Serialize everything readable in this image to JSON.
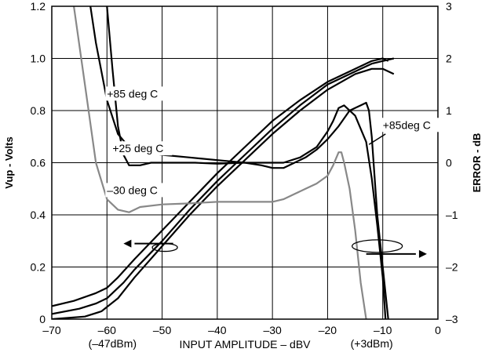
{
  "chart_data": {
    "type": "line",
    "xlabel": "INPUT  AMPLITUDE – dBV",
    "ylabel_left": "Vup - Volts",
    "ylabel_right": "ERROR - dB",
    "xlim": [
      -70,
      0
    ],
    "ylim_left": [
      0,
      1.2
    ],
    "ylim_right": [
      -3,
      3
    ],
    "x_ticks": [
      "–70",
      "–60",
      "–50",
      "–40",
      "–30",
      "–20",
      "–10",
      "0"
    ],
    "x_tick_values": [
      -70,
      -60,
      -50,
      -40,
      -30,
      -20,
      -10,
      0
    ],
    "y_left_ticks": [
      "0",
      "0.2",
      "0.4",
      "0.6",
      "0.8",
      "1.0",
      "1.2"
    ],
    "y_left_tick_values": [
      0,
      0.2,
      0.4,
      0.6,
      0.8,
      1.0,
      1.2
    ],
    "y_right_ticks": [
      "–3",
      "–2",
      "–1",
      "0",
      "1",
      "2",
      "3"
    ],
    "y_right_tick_values": [
      -3,
      -2,
      -1,
      0,
      1,
      2,
      3
    ],
    "grid": true,
    "x_extra_labels": [
      {
        "text": "(–47dBm)",
        "x": -59
      },
      {
        "text": "(+3dBm)",
        "x": -12
      }
    ],
    "series": [
      {
        "name": "",
        "axis": "left",
        "color": "#000000",
        "points": [
          [
            -70,
            0.05
          ],
          [
            -66,
            0.07
          ],
          [
            -62,
            0.1
          ],
          [
            -60,
            0.12
          ],
          [
            -58,
            0.16
          ],
          [
            -55,
            0.23
          ],
          [
            -50,
            0.34
          ],
          [
            -45,
            0.45
          ],
          [
            -40,
            0.56
          ],
          [
            -35,
            0.66
          ],
          [
            -30,
            0.76
          ],
          [
            -25,
            0.84
          ],
          [
            -20,
            0.91
          ],
          [
            -15,
            0.96
          ],
          [
            -12,
            0.99
          ],
          [
            -10,
            1.0
          ],
          [
            -9,
            0.99
          ]
        ]
      },
      {
        "name": "",
        "axis": "left",
        "color": "#000000",
        "points": [
          [
            -70,
            0.02
          ],
          [
            -65,
            0.04
          ],
          [
            -62,
            0.06
          ],
          [
            -60,
            0.08
          ],
          [
            -57,
            0.14
          ],
          [
            -55,
            0.19
          ],
          [
            -50,
            0.3
          ],
          [
            -45,
            0.42
          ],
          [
            -40,
            0.53
          ],
          [
            -35,
            0.63
          ],
          [
            -30,
            0.73
          ],
          [
            -25,
            0.82
          ],
          [
            -20,
            0.9
          ],
          [
            -15,
            0.95
          ],
          [
            -12,
            0.98
          ],
          [
            -10,
            0.99
          ],
          [
            -8,
            1.0
          ]
        ]
      },
      {
        "name": "",
        "axis": "left",
        "color": "#000000",
        "points": [
          [
            -70,
            0.0
          ],
          [
            -64,
            0.01
          ],
          [
            -61,
            0.03
          ],
          [
            -58,
            0.08
          ],
          [
            -55,
            0.16
          ],
          [
            -50,
            0.28
          ],
          [
            -45,
            0.4
          ],
          [
            -40,
            0.51
          ],
          [
            -35,
            0.61
          ],
          [
            -30,
            0.71
          ],
          [
            -25,
            0.8
          ],
          [
            -20,
            0.88
          ],
          [
            -15,
            0.94
          ],
          [
            -12,
            0.96
          ],
          [
            -10,
            0.96
          ],
          [
            -8,
            0.94
          ]
        ]
      },
      {
        "name": "+85 deg C",
        "axis": "right",
        "color": "#000000",
        "points": [
          [
            -63,
            3.0
          ],
          [
            -62,
            2.3
          ],
          [
            -60,
            1.2
          ],
          [
            -58,
            0.55
          ],
          [
            -56,
            0.3
          ],
          [
            -53,
            0.2
          ],
          [
            -50,
            0.15
          ],
          [
            -45,
            0.1
          ],
          [
            -40,
            0.05
          ],
          [
            -35,
            0.0
          ],
          [
            -32,
            -0.05
          ],
          [
            -30,
            -0.1
          ],
          [
            -28,
            -0.1
          ],
          [
            -26,
            0.0
          ],
          [
            -24,
            0.1
          ],
          [
            -22,
            0.25
          ],
          [
            -20,
            0.45
          ],
          [
            -18,
            0.7
          ],
          [
            -16,
            1.0
          ],
          [
            -14,
            1.1
          ],
          [
            -13,
            1.15
          ],
          [
            -12.5,
            1.0
          ],
          [
            -12,
            0.5
          ],
          [
            -11,
            -1.0
          ],
          [
            -10,
            -2.0
          ],
          [
            -9,
            -3.0
          ]
        ]
      },
      {
        "name": "+25 deg C",
        "axis": "right",
        "color": "#000000",
        "points": [
          [
            -60,
            3.0
          ],
          [
            -59,
            1.8
          ],
          [
            -58,
            0.7
          ],
          [
            -57,
            0.15
          ],
          [
            -56,
            -0.05
          ],
          [
            -54,
            -0.05
          ],
          [
            -52,
            0.0
          ],
          [
            -48,
            0.0
          ],
          [
            -44,
            0.0
          ],
          [
            -40,
            -0.02
          ],
          [
            -35,
            0.0
          ],
          [
            -32,
            0.0
          ],
          [
            -30,
            0.0
          ],
          [
            -28,
            0.0
          ],
          [
            -25,
            0.1
          ],
          [
            -22,
            0.3
          ],
          [
            -20,
            0.6
          ],
          [
            -19,
            0.8
          ],
          [
            -18,
            1.05
          ],
          [
            -17,
            1.1
          ],
          [
            -15,
            0.9
          ],
          [
            -13,
            0.4
          ],
          [
            -12,
            -0.3
          ],
          [
            -11,
            -1.2
          ],
          [
            -10,
            -2.2
          ],
          [
            -9.5,
            -3.0
          ]
        ]
      },
      {
        "name": "–30 deg C",
        "axis": "right",
        "color": "#888888",
        "points": [
          [
            -66,
            3.0
          ],
          [
            -64,
            1.5
          ],
          [
            -62,
            0.0
          ],
          [
            -60,
            -0.7
          ],
          [
            -58,
            -0.9
          ],
          [
            -56,
            -0.95
          ],
          [
            -54,
            -0.85
          ],
          [
            -50,
            -0.8
          ],
          [
            -45,
            -0.78
          ],
          [
            -40,
            -0.75
          ],
          [
            -35,
            -0.75
          ],
          [
            -30,
            -0.75
          ],
          [
            -28,
            -0.7
          ],
          [
            -26,
            -0.6
          ],
          [
            -24,
            -0.5
          ],
          [
            -22,
            -0.4
          ],
          [
            -20,
            -0.25
          ],
          [
            -19,
            -0.05
          ],
          [
            -18,
            0.2
          ],
          [
            -17.5,
            0.2
          ],
          [
            -17,
            0.0
          ],
          [
            -16,
            -0.5
          ],
          [
            -15,
            -1.3
          ],
          [
            -14,
            -2.3
          ],
          [
            -13,
            -3.0
          ]
        ]
      }
    ],
    "annotations": [
      {
        "text": "+85 deg C",
        "x": -60,
        "y": 0.85,
        "axis": "left"
      },
      {
        "text": "+25 deg C",
        "x": -59,
        "y": 0.64,
        "axis": "left"
      },
      {
        "text": "–30 deg C",
        "x": -60,
        "y": 0.48,
        "axis": "left"
      },
      {
        "text": "+85deg C",
        "x": -10,
        "y": 0.73,
        "axis": "left"
      }
    ],
    "arrows": [
      {
        "direction": "left",
        "meaning": "left axis curves"
      },
      {
        "direction": "right",
        "meaning": "right axis curves"
      }
    ]
  }
}
